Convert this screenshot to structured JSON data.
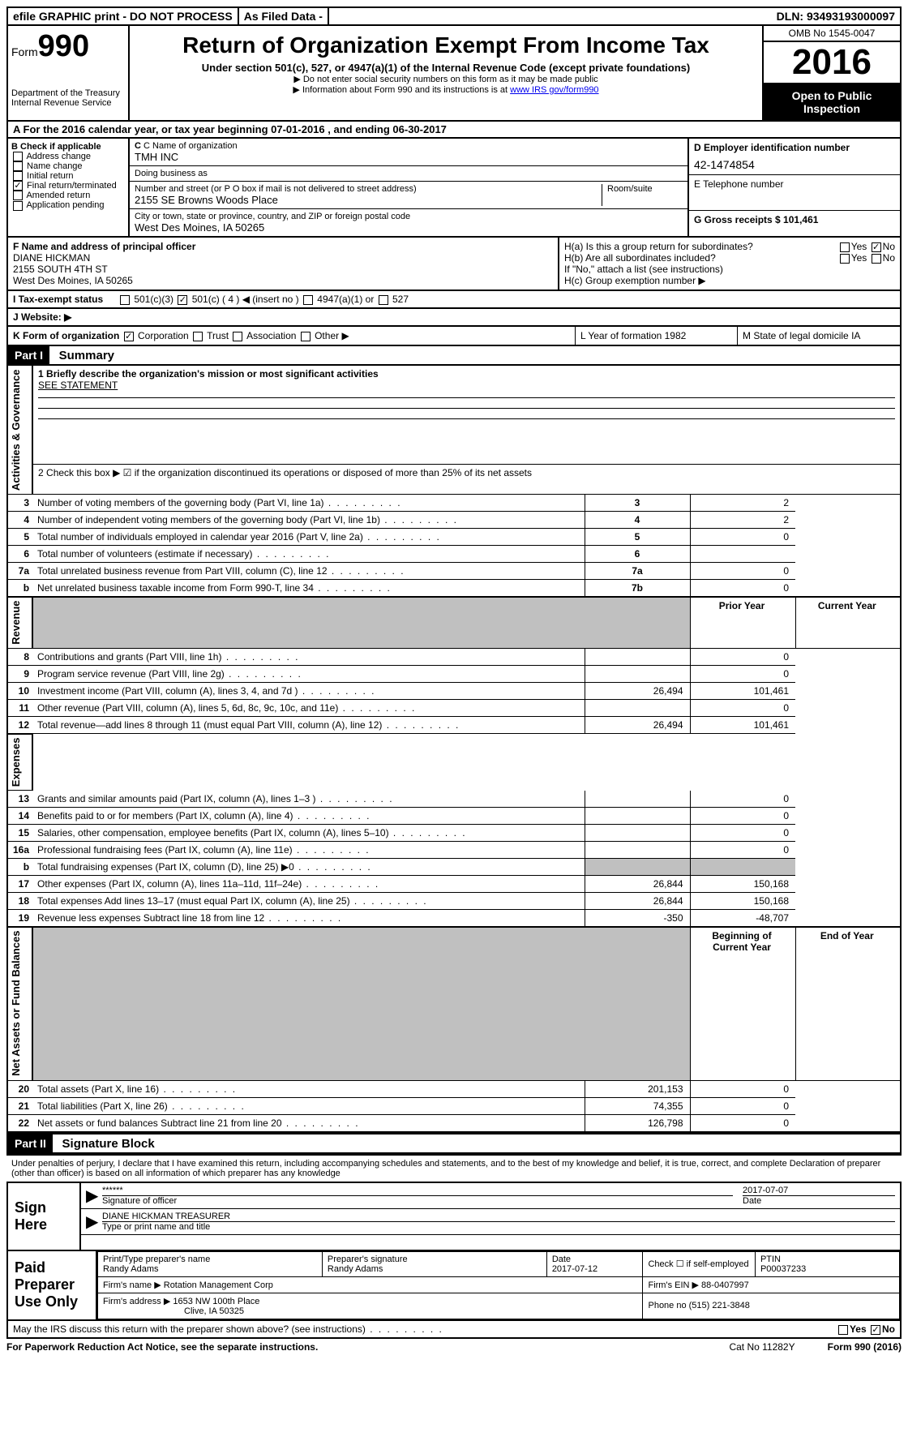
{
  "topbar": {
    "efile": "efile GRAPHIC print - DO NOT PROCESS",
    "asfiled": "As Filed Data -",
    "dln": "DLN: 93493193000097"
  },
  "header": {
    "form_prefix": "Form",
    "form_num": "990",
    "dept": "Department of the Treasury",
    "irs": "Internal Revenue Service",
    "title": "Return of Organization Exempt From Income Tax",
    "subtitle": "Under section 501(c), 527, or 4947(a)(1) of the Internal Revenue Code (except private foundations)",
    "note1": "▶ Do not enter social security numbers on this form as it may be made public",
    "note2_pre": "▶ Information about Form 990 and its instructions is at ",
    "note2_link": "www IRS gov/form990",
    "omb": "OMB No 1545-0047",
    "year": "2016",
    "inspection": "Open to Public Inspection"
  },
  "rowA": "A  For the 2016 calendar year, or tax year beginning 07-01-2016   , and ending 06-30-2017",
  "B": {
    "title": "B Check if applicable",
    "items": [
      "Address change",
      "Name change",
      "Initial return",
      "Final return/terminated",
      "Amended return",
      "Application pending"
    ],
    "checked_index": 3
  },
  "C": {
    "name_label": "C Name of organization",
    "name": "TMH INC",
    "dba_label": "Doing business as",
    "dba": "",
    "street_label": "Number and street (or P O  box if mail is not delivered to street address)",
    "room_label": "Room/suite",
    "street": "2155 SE Browns Woods Place",
    "city_label": "City or town, state or province, country, and ZIP or foreign postal code",
    "city": "West Des Moines, IA  50265"
  },
  "D": {
    "label": "D Employer identification number",
    "value": "42-1474854"
  },
  "E": {
    "label": "E Telephone number",
    "value": ""
  },
  "G": {
    "label": "G Gross receipts $ 101,461"
  },
  "F": {
    "label": "F  Name and address of principal officer",
    "name": "DIANE HICKMAN",
    "addr1": "2155 SOUTH 4TH ST",
    "addr2": "West Des Moines, IA  50265"
  },
  "H": {
    "a": "H(a)  Is this a group return for subordinates?",
    "a_yes": "Yes",
    "a_no": "No",
    "b": "H(b) Are all subordinates included?",
    "b_note": "If \"No,\" attach a list  (see instructions)",
    "c": "H(c)  Group exemption number ▶"
  },
  "I": {
    "label": "I  Tax-exempt status",
    "opts": [
      "501(c)(3)",
      "501(c) ( 4 ) ◀ (insert no )",
      "4947(a)(1) or",
      "527"
    ],
    "checked": 1
  },
  "J": {
    "label": "J  Website: ▶",
    "value": ""
  },
  "K": {
    "label": "K Form of organization",
    "opts": [
      "Corporation",
      "Trust",
      "Association",
      "Other ▶"
    ],
    "checked": 0
  },
  "L": {
    "label": "L Year of formation  1982"
  },
  "M": {
    "label": "M State of legal domicile  IA"
  },
  "partI": {
    "num": "Part I",
    "title": "Summary"
  },
  "summary": {
    "q1": "1 Briefly describe the organization's mission or most significant activities",
    "q1_val": "SEE STATEMENT",
    "q2": "2  Check this box ▶ ☑  if the organization discontinued its operations or disposed of more than 25% of its net assets",
    "rows_ag": [
      {
        "n": "3",
        "t": "Number of voting members of the governing body (Part VI, line 1a)",
        "box": "3",
        "v": "2"
      },
      {
        "n": "4",
        "t": "Number of independent voting members of the governing body (Part VI, line 1b)",
        "box": "4",
        "v": "2"
      },
      {
        "n": "5",
        "t": "Total number of individuals employed in calendar year 2016 (Part V, line 2a)",
        "box": "5",
        "v": "0"
      },
      {
        "n": "6",
        "t": "Total number of volunteers (estimate if necessary)",
        "box": "6",
        "v": ""
      },
      {
        "n": "7a",
        "t": "Total unrelated business revenue from Part VIII, column (C), line 12",
        "box": "7a",
        "v": "0"
      },
      {
        "n": "b",
        "t": "Net unrelated business taxable income from Form 990-T, line 34",
        "box": "7b",
        "v": "0"
      }
    ],
    "col_prior": "Prior Year",
    "col_current": "Current Year",
    "rows_rev": [
      {
        "n": "8",
        "t": "Contributions and grants (Part VIII, line 1h)",
        "p": "",
        "c": "0"
      },
      {
        "n": "9",
        "t": "Program service revenue (Part VIII, line 2g)",
        "p": "",
        "c": "0"
      },
      {
        "n": "10",
        "t": "Investment income (Part VIII, column (A), lines 3, 4, and 7d )",
        "p": "26,494",
        "c": "101,461"
      },
      {
        "n": "11",
        "t": "Other revenue (Part VIII, column (A), lines 5, 6d, 8c, 9c, 10c, and 11e)",
        "p": "",
        "c": "0"
      },
      {
        "n": "12",
        "t": "Total revenue—add lines 8 through 11 (must equal Part VIII, column (A), line 12)",
        "p": "26,494",
        "c": "101,461"
      }
    ],
    "rows_exp": [
      {
        "n": "13",
        "t": "Grants and similar amounts paid (Part IX, column (A), lines 1–3 )",
        "p": "",
        "c": "0"
      },
      {
        "n": "14",
        "t": "Benefits paid to or for members (Part IX, column (A), line 4)",
        "p": "",
        "c": "0"
      },
      {
        "n": "15",
        "t": "Salaries, other compensation, employee benefits (Part IX, column (A), lines 5–10)",
        "p": "",
        "c": "0"
      },
      {
        "n": "16a",
        "t": "Professional fundraising fees (Part IX, column (A), line 11e)",
        "p": "",
        "c": "0"
      },
      {
        "n": "b",
        "t": "Total fundraising expenses (Part IX, column (D), line 25) ▶0",
        "p": "",
        "c": "",
        "grey": true
      },
      {
        "n": "17",
        "t": "Other expenses (Part IX, column (A), lines 11a–11d, 11f–24e)",
        "p": "26,844",
        "c": "150,168"
      },
      {
        "n": "18",
        "t": "Total expenses  Add lines 13–17 (must equal Part IX, column (A), line 25)",
        "p": "26,844",
        "c": "150,168"
      },
      {
        "n": "19",
        "t": "Revenue less expenses  Subtract line 18 from line 12",
        "p": "-350",
        "c": "-48,707"
      }
    ],
    "col_begin": "Beginning of Current Year",
    "col_end": "End of Year",
    "rows_na": [
      {
        "n": "20",
        "t": "Total assets (Part X, line 16)",
        "p": "201,153",
        "c": "0"
      },
      {
        "n": "21",
        "t": "Total liabilities (Part X, line 26)",
        "p": "74,355",
        "c": "0"
      },
      {
        "n": "22",
        "t": "Net assets or fund balances  Subtract line 21 from line 20",
        "p": "126,798",
        "c": "0"
      }
    ],
    "side_ag": "Activities & Governance",
    "side_rev": "Revenue",
    "side_exp": "Expenses",
    "side_na": "Net Assets or Fund Balances"
  },
  "partII": {
    "num": "Part II",
    "title": "Signature Block"
  },
  "sig_text": "Under penalties of perjury, I declare that I have examined this return, including accompanying schedules and statements, and to the best of my knowledge and belief, it is true, correct, and complete  Declaration of preparer (other than officer) is based on all information of which preparer has any knowledge",
  "sign": {
    "label": "Sign Here",
    "stars": "******",
    "sig_label": "Signature of officer",
    "date": "2017-07-07",
    "date_label": "Date",
    "name": "DIANE HICKMAN TREASURER",
    "name_label": "Type or print name and title"
  },
  "paid": {
    "label": "Paid Preparer Use Only",
    "prep_name_label": "Print/Type preparer's name",
    "prep_name": "Randy Adams",
    "prep_sig_label": "Preparer's signature",
    "prep_sig": "Randy Adams",
    "prep_date_label": "Date",
    "prep_date": "2017-07-12",
    "check_label": "Check ☐ if self-employed",
    "ptin_label": "PTIN",
    "ptin": "P00037233",
    "firm_name_label": "Firm's name    ▶",
    "firm_name": "Rotation Management Corp",
    "firm_ein_label": "Firm's EIN ▶",
    "firm_ein": "88-0407997",
    "firm_addr_label": "Firm's address ▶",
    "firm_addr1": "1653 NW 100th Place",
    "firm_addr2": "Clive, IA  50325",
    "phone_label": "Phone no  (515) 221-3848"
  },
  "discuss": {
    "text": "May the IRS discuss this return with the preparer shown above? (see instructions)",
    "yes": "Yes",
    "no": "No"
  },
  "footer": {
    "left": "For Paperwork Reduction Act Notice, see the separate instructions.",
    "mid": "Cat  No  11282Y",
    "right": "Form 990 (2016)"
  }
}
